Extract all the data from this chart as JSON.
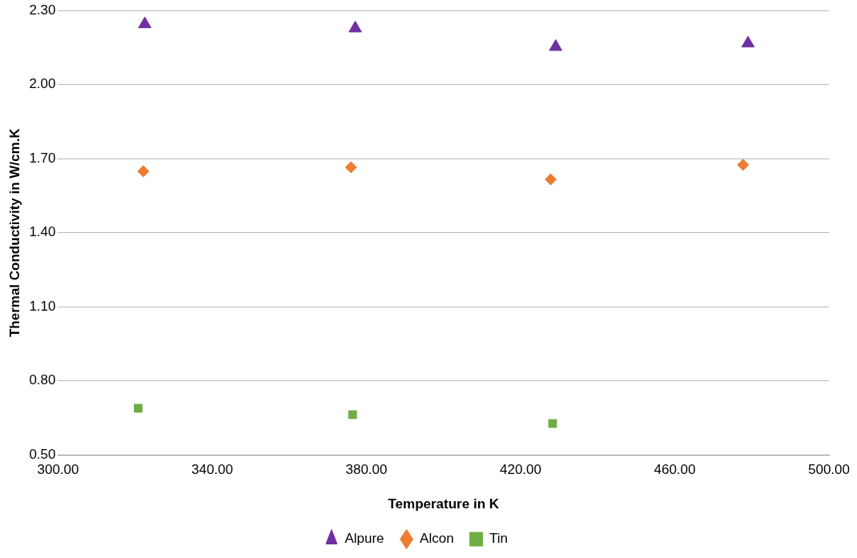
{
  "chart_data": {
    "type": "scatter",
    "xlabel": "Temperature in K",
    "ylabel": "Thermal Conductivity in W/cm.K",
    "xlim": [
      300,
      500
    ],
    "xticks": [
      {
        "value": 300,
        "label": "300.00"
      },
      {
        "value": 340,
        "label": "340.00"
      },
      {
        "value": 380,
        "label": "380.00"
      },
      {
        "value": 420,
        "label": "420.00"
      },
      {
        "value": 460,
        "label": "460.00"
      },
      {
        "value": 500,
        "label": "500.00"
      }
    ],
    "ylim": [
      0.5,
      2.3
    ],
    "yticks": [
      {
        "value": 0.5,
        "label": "0.50"
      },
      {
        "value": 0.8,
        "label": "0.80"
      },
      {
        "value": 1.1,
        "label": "1.10"
      },
      {
        "value": 1.4,
        "label": "1.40"
      },
      {
        "value": 1.7,
        "label": "1.70"
      },
      {
        "value": 2.0,
        "label": "2.00"
      },
      {
        "value": 2.3,
        "label": "2.30"
      }
    ],
    "grid": "y",
    "legend": "bottom",
    "series": [
      {
        "name": "Alpure",
        "color": "#7030a0",
        "marker": "triangle",
        "x": [
          322.5,
          377.1,
          429.1,
          479.0
        ],
        "values": [
          2.245,
          2.228,
          2.153,
          2.167
        ]
      },
      {
        "name": "Alcon",
        "color": "#ed7d31",
        "marker": "diamond",
        "x": [
          322.1,
          376.0,
          427.8,
          477.7
        ],
        "values": [
          1.649,
          1.665,
          1.616,
          1.675
        ]
      },
      {
        "name": "Tin",
        "color": "#70ad47",
        "marker": "square",
        "x": [
          320.8,
          376.4,
          428.3
        ],
        "values": [
          0.689,
          0.663,
          0.627
        ]
      }
    ]
  }
}
